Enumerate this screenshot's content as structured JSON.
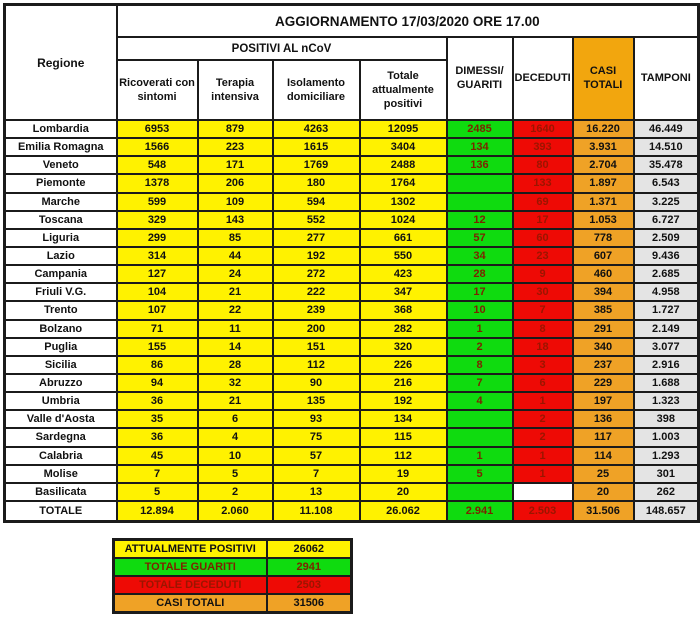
{
  "title": "AGGIORNAMENTO 17/03/2020 ORE 17.00",
  "table": {
    "headers": {
      "regione": "Regione",
      "positivi_group": "POSITIVI AL nCoV",
      "ricoverati": "Ricoverati con sintomi",
      "terapia": "Terapia intensiva",
      "isolamento": "Isolamento domiciliare",
      "totale_positivi": "Totale attualmente positivi",
      "dimessi": "DIMESSI/ GUARITI",
      "deceduti": "DECEDUTI",
      "casi_totali": "CASI TOTALI",
      "tamponi": "TAMPONI"
    },
    "rows": [
      {
        "regione": "Lombardia",
        "ricoverati": "6953",
        "terapia": "879",
        "isolamento": "4263",
        "totale_positivi": "12095",
        "dimessi": "2485",
        "deceduti": "1640",
        "casi_totali": "16.220",
        "tamponi": "46.449"
      },
      {
        "regione": "Emilia Romagna",
        "ricoverati": "1566",
        "terapia": "223",
        "isolamento": "1615",
        "totale_positivi": "3404",
        "dimessi": "134",
        "deceduti": "393",
        "casi_totali": "3.931",
        "tamponi": "14.510"
      },
      {
        "regione": "Veneto",
        "ricoverati": "548",
        "terapia": "171",
        "isolamento": "1769",
        "totale_positivi": "2488",
        "dimessi": "136",
        "deceduti": "80",
        "casi_totali": "2.704",
        "tamponi": "35.478"
      },
      {
        "regione": "Piemonte",
        "ricoverati": "1378",
        "terapia": "206",
        "isolamento": "180",
        "totale_positivi": "1764",
        "dimessi": "",
        "deceduti": "133",
        "casi_totali": "1.897",
        "tamponi": "6.543"
      },
      {
        "regione": "Marche",
        "ricoverati": "599",
        "terapia": "109",
        "isolamento": "594",
        "totale_positivi": "1302",
        "dimessi": "",
        "deceduti": "69",
        "casi_totali": "1.371",
        "tamponi": "3.225"
      },
      {
        "regione": "Toscana",
        "ricoverati": "329",
        "terapia": "143",
        "isolamento": "552",
        "totale_positivi": "1024",
        "dimessi": "12",
        "deceduti": "17",
        "casi_totali": "1.053",
        "tamponi": "6.727"
      },
      {
        "regione": "Liguria",
        "ricoverati": "299",
        "terapia": "85",
        "isolamento": "277",
        "totale_positivi": "661",
        "dimessi": "57",
        "deceduti": "60",
        "casi_totali": "778",
        "tamponi": "2.509"
      },
      {
        "regione": "Lazio",
        "ricoverati": "314",
        "terapia": "44",
        "isolamento": "192",
        "totale_positivi": "550",
        "dimessi": "34",
        "deceduti": "23",
        "casi_totali": "607",
        "tamponi": "9.436"
      },
      {
        "regione": "Campania",
        "ricoverati": "127",
        "terapia": "24",
        "isolamento": "272",
        "totale_positivi": "423",
        "dimessi": "28",
        "deceduti": "9",
        "casi_totali": "460",
        "tamponi": "2.685"
      },
      {
        "regione": "Friuli V.G.",
        "ricoverati": "104",
        "terapia": "21",
        "isolamento": "222",
        "totale_positivi": "347",
        "dimessi": "17",
        "deceduti": "30",
        "casi_totali": "394",
        "tamponi": "4.958"
      },
      {
        "regione": "Trento",
        "ricoverati": "107",
        "terapia": "22",
        "isolamento": "239",
        "totale_positivi": "368",
        "dimessi": "10",
        "deceduti": "7",
        "casi_totali": "385",
        "tamponi": "1.727"
      },
      {
        "regione": "Bolzano",
        "ricoverati": "71",
        "terapia": "11",
        "isolamento": "200",
        "totale_positivi": "282",
        "dimessi": "1",
        "deceduti": "8",
        "casi_totali": "291",
        "tamponi": "2.149"
      },
      {
        "regione": "Puglia",
        "ricoverati": "155",
        "terapia": "14",
        "isolamento": "151",
        "totale_positivi": "320",
        "dimessi": "2",
        "deceduti": "18",
        "casi_totali": "340",
        "tamponi": "3.077"
      },
      {
        "regione": "Sicilia",
        "ricoverati": "86",
        "terapia": "28",
        "isolamento": "112",
        "totale_positivi": "226",
        "dimessi": "8",
        "deceduti": "3",
        "casi_totali": "237",
        "tamponi": "2.916"
      },
      {
        "regione": "Abruzzo",
        "ricoverati": "94",
        "terapia": "32",
        "isolamento": "90",
        "totale_positivi": "216",
        "dimessi": "7",
        "deceduti": "6",
        "casi_totali": "229",
        "tamponi": "1.688"
      },
      {
        "regione": "Umbria",
        "ricoverati": "36",
        "terapia": "21",
        "isolamento": "135",
        "totale_positivi": "192",
        "dimessi": "4",
        "deceduti": "1",
        "casi_totali": "197",
        "tamponi": "1.323"
      },
      {
        "regione": "Valle d'Aosta",
        "ricoverati": "35",
        "terapia": "6",
        "isolamento": "93",
        "totale_positivi": "134",
        "dimessi": "",
        "deceduti": "2",
        "casi_totali": "136",
        "tamponi": "398"
      },
      {
        "regione": "Sardegna",
        "ricoverati": "36",
        "terapia": "4",
        "isolamento": "75",
        "totale_positivi": "115",
        "dimessi": "",
        "deceduti": "2",
        "casi_totali": "117",
        "tamponi": "1.003"
      },
      {
        "regione": "Calabria",
        "ricoverati": "45",
        "terapia": "10",
        "isolamento": "57",
        "totale_positivi": "112",
        "dimessi": "1",
        "deceduti": "1",
        "casi_totali": "114",
        "tamponi": "1.293"
      },
      {
        "regione": "Molise",
        "ricoverati": "7",
        "terapia": "5",
        "isolamento": "7",
        "totale_positivi": "19",
        "dimessi": "5",
        "deceduti": "1",
        "casi_totali": "25",
        "tamponi": "301"
      },
      {
        "regione": "Basilicata",
        "ricoverati": "5",
        "terapia": "2",
        "isolamento": "13",
        "totale_positivi": "20",
        "dimessi": "",
        "deceduti": "",
        "deceduti_white": true,
        "casi_totali": "20",
        "tamponi": "262"
      }
    ],
    "totals": {
      "label": "TOTALE",
      "ricoverati": "12.894",
      "terapia": "2.060",
      "isolamento": "11.108",
      "totale_positivi": "26.062",
      "dimessi": "2.941",
      "deceduti": "2.503",
      "casi_totali": "31.506",
      "tamponi": "148.657"
    }
  },
  "summary": {
    "rows": [
      {
        "label": "ATTUALMENTE POSITIVI",
        "value": "26062",
        "style": "yellow"
      },
      {
        "label": "TOTALE GUARITI",
        "value": "2941",
        "style": "green"
      },
      {
        "label": "TOTALE DECEDUTI",
        "value": "2503",
        "style": "red"
      },
      {
        "label": "CASI TOTALI",
        "value": "31506",
        "style": "orange"
      }
    ]
  },
  "colors": {
    "yellow": "#FFF200",
    "green": "#0FDB0F",
    "red": "#EE0A05",
    "orange": "#EFA226",
    "header_orange": "#F2A60E",
    "gray": "#E4E4E4",
    "text_on_green": "#7B2500",
    "text_on_red": "#9B1500",
    "border": "#1B1B1B"
  }
}
